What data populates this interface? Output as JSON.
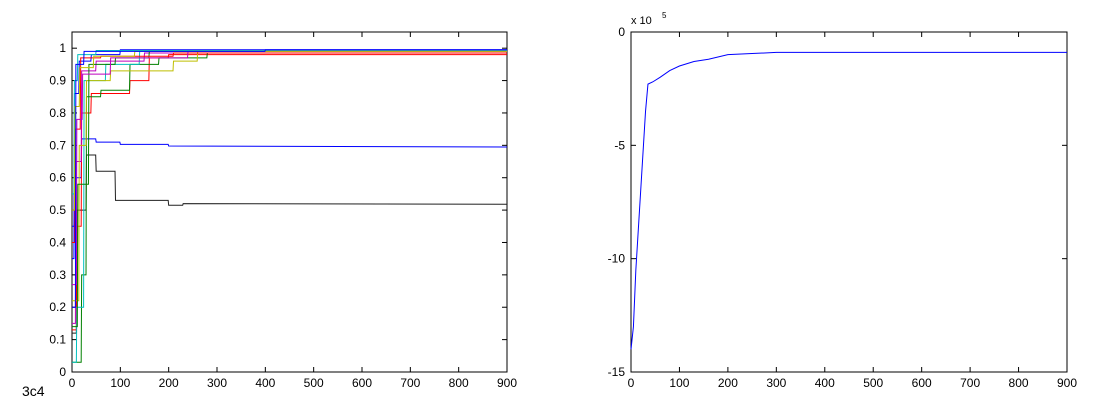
{
  "caption": "3c4",
  "chart_data": [
    {
      "type": "line",
      "xlim": [
        0,
        900
      ],
      "xticks": [
        0,
        100,
        200,
        300,
        400,
        500,
        600,
        700,
        800,
        900
      ],
      "ylim": [
        0,
        1.05
      ],
      "yticks": [
        0,
        0.1,
        0.2,
        0.3,
        0.4,
        0.5,
        0.6,
        0.7,
        0.8,
        0.9,
        1
      ],
      "series": [
        {
          "color": "#0000ff",
          "x": [
            0,
            4,
            5,
            19,
            20,
            49,
            50,
            99,
            100,
            199,
            200,
            900
          ],
          "values": [
            0.45,
            0.45,
            0.6,
            0.6,
            0.72,
            0.72,
            0.71,
            0.71,
            0.703,
            0.703,
            0.698,
            0.695
          ]
        },
        {
          "color": "#202020",
          "x": [
            0,
            9,
            10,
            29,
            30,
            49,
            50,
            89,
            90,
            199,
            200,
            229,
            230,
            900
          ],
          "values": [
            0.12,
            0.12,
            0.5,
            0.5,
            0.67,
            0.67,
            0.62,
            0.62,
            0.53,
            0.53,
            0.515,
            0.515,
            0.52,
            0.518
          ]
        },
        {
          "color": "#ff0000",
          "x": [
            0,
            9,
            10,
            19,
            20,
            39,
            40,
            119,
            120,
            159,
            160,
            199,
            200,
            900
          ],
          "values": [
            0.13,
            0.13,
            0.45,
            0.45,
            0.8,
            0.8,
            0.86,
            0.86,
            0.9,
            0.9,
            0.97,
            0.97,
            0.98,
            0.98
          ]
        },
        {
          "color": "#008000",
          "x": [
            0,
            19,
            20,
            29,
            30,
            59,
            60,
            119,
            120,
            179,
            180,
            279,
            280,
            900
          ],
          "values": [
            0.03,
            0.03,
            0.3,
            0.3,
            0.85,
            0.85,
            0.87,
            0.87,
            0.95,
            0.95,
            0.97,
            0.97,
            0.985,
            0.985
          ]
        },
        {
          "color": "#00bfbf",
          "x": [
            0,
            9,
            10,
            24,
            25,
            69,
            70,
            139,
            140,
            900
          ],
          "values": [
            0.03,
            0.03,
            0.2,
            0.2,
            0.9,
            0.9,
            0.95,
            0.95,
            0.99,
            0.99
          ]
        },
        {
          "color": "#bf00bf",
          "x": [
            0,
            7,
            8,
            19,
            20,
            49,
            50,
            149,
            150,
            900
          ],
          "values": [
            0.15,
            0.15,
            0.65,
            0.65,
            0.93,
            0.93,
            0.96,
            0.96,
            0.985,
            0.985
          ]
        },
        {
          "color": "#bfbf00",
          "x": [
            0,
            14,
            15,
            29,
            30,
            79,
            80,
            209,
            210,
            259,
            260,
            900
          ],
          "values": [
            0.22,
            0.22,
            0.7,
            0.7,
            0.9,
            0.9,
            0.93,
            0.93,
            0.96,
            0.96,
            0.99,
            0.99
          ]
        },
        {
          "color": "#0000ff",
          "x": [
            0,
            4,
            5,
            14,
            15,
            39,
            40,
            99,
            100,
            900
          ],
          "values": [
            0.35,
            0.35,
            0.86,
            0.86,
            0.96,
            0.96,
            0.98,
            0.98,
            0.995,
            0.995
          ]
        },
        {
          "color": "#008000",
          "x": [
            0,
            11,
            12,
            34,
            35,
            89,
            90,
            159,
            160,
            900
          ],
          "values": [
            0.14,
            0.14,
            0.58,
            0.58,
            0.95,
            0.95,
            0.97,
            0.97,
            0.99,
            0.99
          ]
        },
        {
          "color": "#ff0000",
          "x": [
            0,
            6,
            7,
            17,
            18,
            59,
            60,
            209,
            210,
            900
          ],
          "values": [
            0.4,
            0.4,
            0.75,
            0.75,
            0.97,
            0.97,
            0.975,
            0.975,
            0.985,
            0.985
          ]
        },
        {
          "color": "#00bfbf",
          "x": [
            0,
            4,
            5,
            11,
            12,
            49,
            50,
            900
          ],
          "values": [
            0.55,
            0.55,
            0.9,
            0.9,
            0.98,
            0.98,
            0.993,
            0.993
          ]
        },
        {
          "color": "#bf00bf",
          "x": [
            0,
            9,
            10,
            21,
            22,
            79,
            80,
            239,
            240,
            900
          ],
          "values": [
            0.27,
            0.27,
            0.78,
            0.78,
            0.92,
            0.92,
            0.97,
            0.97,
            0.99,
            0.99
          ]
        },
        {
          "color": "#bfbf00",
          "x": [
            0,
            5,
            6,
            15,
            16,
            44,
            45,
            129,
            130,
            900
          ],
          "values": [
            0.5,
            0.5,
            0.82,
            0.82,
            0.94,
            0.94,
            0.975,
            0.975,
            0.99,
            0.99
          ]
        },
        {
          "color": "#0000ff",
          "x": [
            0,
            7,
            8,
            24,
            25,
            399,
            400,
            900
          ],
          "values": [
            0.2,
            0.2,
            0.95,
            0.95,
            0.99,
            0.99,
            0.995,
            0.995
          ]
        }
      ]
    },
    {
      "type": "line",
      "xlim": [
        0,
        900
      ],
      "xticks": [
        0,
        100,
        200,
        300,
        400,
        500,
        600,
        700,
        800,
        900
      ],
      "ylim": [
        -15,
        0
      ],
      "yticks": [
        -15,
        -10,
        -5,
        0
      ],
      "multiplier": "x 10",
      "multiplier_exponent": "5",
      "series": [
        {
          "color": "#0000ff",
          "x": [
            0,
            5,
            10,
            20,
            30,
            35,
            45,
            60,
            80,
            100,
            130,
            160,
            200,
            250,
            300,
            900
          ],
          "values": [
            -14,
            -13,
            -10.5,
            -7,
            -3.5,
            -2.3,
            -2.2,
            -2.0,
            -1.7,
            -1.5,
            -1.3,
            -1.2,
            -1.0,
            -0.95,
            -0.9,
            -0.9
          ]
        }
      ]
    }
  ]
}
